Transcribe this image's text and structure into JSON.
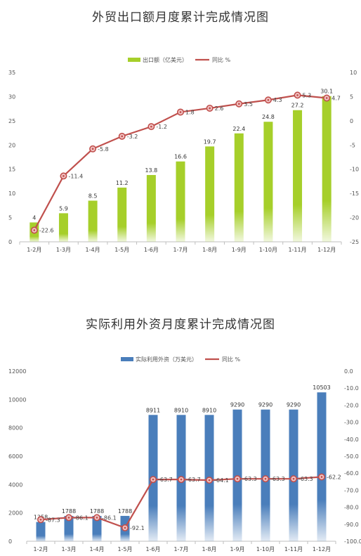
{
  "chart_data": [
    {
      "type": "bar",
      "title": "外贸出口额月度累计完成情况图",
      "categories": [
        "1-2月",
        "1-3月",
        "1-4月",
        "1-5月",
        "1-6月",
        "1-7月",
        "1-8月",
        "1-9月",
        "1-10月",
        "1-11月",
        "1-12月"
      ],
      "series": [
        {
          "name": "出口额（亿美元）",
          "type": "bar",
          "axis": "left",
          "color": "#a6cf2a",
          "values": [
            4,
            5.9,
            8.5,
            11.2,
            13.8,
            16.6,
            19.7,
            22.4,
            24.8,
            27.2,
            30.1
          ]
        },
        {
          "name": "同比 %",
          "type": "line",
          "axis": "right",
          "color": "#c0504d",
          "values": [
            -22.6,
            -11.4,
            -5.8,
            -3.2,
            -1.2,
            1.8,
            2.6,
            3.5,
            4.3,
            5.3,
            4.7
          ]
        }
      ],
      "left_axis": {
        "min": 0,
        "max": 35,
        "step": 5
      },
      "right_axis": {
        "min": -25,
        "max": 10,
        "step": 5
      },
      "legend": "top-center",
      "grid": false
    },
    {
      "type": "bar",
      "title": "实际利用外资月度累计完成情况图",
      "categories": [
        "1-2月",
        "1-3月",
        "1-4月",
        "1-5月",
        "1-6月",
        "1-7月",
        "1-8月",
        "1-9月",
        "1-10月",
        "1-11月",
        "1-12月"
      ],
      "series": [
        {
          "name": "实际利用外资（万美元）",
          "type": "bar",
          "axis": "left",
          "color": "#4a7ebb",
          "values": [
            1358,
            1788,
            1788,
            1788,
            8911,
            8910,
            8910,
            9290,
            9290,
            9290,
            10503
          ]
        },
        {
          "name": "同比 %",
          "type": "line",
          "axis": "right",
          "color": "#c0504d",
          "values": [
            -87.3,
            -86.1,
            -86.1,
            -92.1,
            -63.7,
            -63.7,
            -64.1,
            -63.3,
            -63.3,
            -63.3,
            -62.2
          ]
        }
      ],
      "left_axis": {
        "min": 0,
        "max": 12000,
        "step": 2000
      },
      "right_axis": {
        "min": -100,
        "max": 0,
        "step": 10
      },
      "legend": "top-center",
      "grid": false
    }
  ]
}
